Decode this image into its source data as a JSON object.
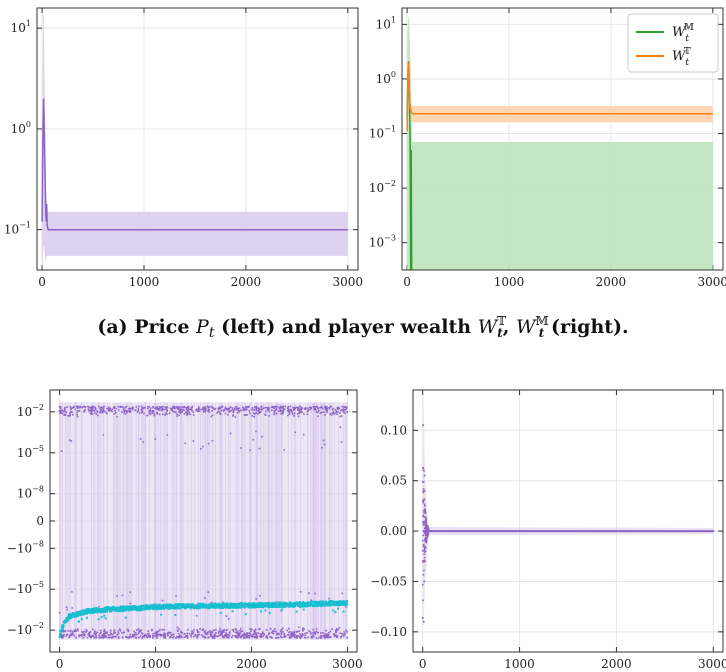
{
  "caption": "(a) Price P_t (left) and player wealth W_t^T, W_t^M (right).",
  "colors": {
    "purple": "#8e63c5",
    "purple_fill": "#dccdee",
    "green": "#2ca02c",
    "green_fill": "#bfe3bd",
    "orange": "#ff7f0e",
    "orange_fill": "#fdd3ad",
    "cyan": "#17becf",
    "grid": "#e6e6e6"
  },
  "chart_data": [
    {
      "id": "price",
      "type": "line",
      "title": "",
      "xlabel": "",
      "ylabel": "",
      "xlim": [
        -50,
        3100
      ],
      "y_scale": "log",
      "ylim_log10": [
        -1.4,
        1.2
      ],
      "grid": true,
      "x_ticks": [
        "0",
        "1000",
        "2000",
        "3000"
      ],
      "y_ticks": [
        {
          "base": "10",
          "exp": "1",
          "log10": 1
        },
        {
          "base": "10",
          "exp": "0",
          "log10": 0
        },
        {
          "base": "10",
          "exp": "−1",
          "log10": -1
        }
      ],
      "series": [
        {
          "color_key": "purple",
          "x": [
            0,
            5,
            10,
            15,
            20,
            25,
            30,
            35,
            40,
            45,
            50,
            60,
            80,
            100,
            200,
            500,
            1000,
            2000,
            3000
          ],
          "y": [
            0.12,
            0.5,
            1.2,
            2.0,
            1.2,
            0.6,
            0.3,
            0.15,
            0.12,
            0.18,
            0.11,
            0.1,
            0.1,
            0.1,
            0.1,
            0.1,
            0.1,
            0.1,
            0.1
          ],
          "band": {
            "x": [
              0,
              5,
              10,
              15,
              20,
              25,
              30,
              35,
              40,
              45,
              50,
              60,
              3000
            ],
            "lower": [
              0.04,
              0.05,
              0.06,
              0.07,
              0.07,
              0.06,
              0.05,
              0.05,
              0.05,
              0.055,
              0.055,
              0.055,
              0.055
            ],
            "upper": [
              0.15,
              3.0,
              13.0,
              14.0,
              8.0,
              3.0,
              1.0,
              0.3,
              0.2,
              0.2,
              0.15,
              0.15,
              0.15
            ]
          }
        }
      ]
    },
    {
      "id": "wealth",
      "type": "line",
      "title": "",
      "xlabel": "",
      "ylabel": "",
      "xlim": [
        -50,
        3100
      ],
      "y_scale": "log",
      "ylim_log10": [
        -3.5,
        1.3
      ],
      "grid": true,
      "legend_position": "top-right",
      "x_ticks": [
        "0",
        "1000",
        "2000",
        "3000"
      ],
      "y_ticks": [
        {
          "base": "10",
          "exp": "1",
          "log10": 1
        },
        {
          "base": "10",
          "exp": "0",
          "log10": 0
        },
        {
          "base": "10",
          "exp": "−1",
          "log10": -1
        },
        {
          "base": "10",
          "exp": "−2",
          "log10": -2
        },
        {
          "base": "10",
          "exp": "−3",
          "log10": -3
        }
      ],
      "series": [
        {
          "name": "W_t^M",
          "name_main": "W",
          "name_sub": "t",
          "name_sup": "𝕄",
          "color_key": "green",
          "x": [
            0,
            5,
            10,
            15,
            20,
            25,
            30,
            35,
            40,
            45
          ],
          "y": [
            0.2,
            0.6,
            1.5,
            2.1,
            1.0,
            0.3,
            0.05,
            0.0003,
            0.05,
            0.0003
          ],
          "band": {
            "x": [
              0,
              10,
              20,
              30,
              40,
              50,
              60,
              3000
            ],
            "lower": [
              0.0003,
              0.0003,
              0.0003,
              0.0003,
              0.0003,
              0.0003,
              0.0003,
              0.0003
            ],
            "upper": [
              3.0,
              14.0,
              12.0,
              3.0,
              0.5,
              0.07,
              0.07,
              0.07
            ]
          }
        },
        {
          "name": "W_t^T",
          "name_main": "W",
          "name_sub": "t",
          "name_sup": "𝕋",
          "color_key": "orange",
          "x": [
            0,
            5,
            10,
            15,
            20,
            25,
            30,
            40,
            50,
            100,
            500,
            1000,
            2000,
            3000
          ],
          "y": [
            0.11,
            0.4,
            1.3,
            2.0,
            1.0,
            0.4,
            0.3,
            0.25,
            0.23,
            0.23,
            0.23,
            0.23,
            0.23,
            0.23
          ],
          "band": {
            "x": [
              0,
              10,
              20,
              30,
              40,
              50,
              3000
            ],
            "lower": [
              0.1,
              0.3,
              0.3,
              0.2,
              0.16,
              0.16,
              0.16
            ],
            "upper": [
              2.5,
              2.5,
              1.5,
              0.6,
              0.32,
              0.32,
              0.32
            ]
          }
        }
      ]
    },
    {
      "id": "bottom-left",
      "type": "scatter",
      "title": "",
      "xlabel": "",
      "ylabel": "",
      "xlim": [
        -100,
        3100
      ],
      "y_scale": "symlog",
      "grid": true,
      "x_ticks": [
        "0",
        "1000",
        "2000",
        "3000"
      ],
      "y_ticks": [
        {
          "base": "10",
          "exp": "−2",
          "sign": "",
          "value": 0.01
        },
        {
          "base": "10",
          "exp": "−5",
          "sign": "",
          "value": 1e-05
        },
        {
          "base": "10",
          "exp": "−8",
          "sign": "",
          "value": 1e-08
        },
        {
          "base": "0",
          "exp": "",
          "sign": "",
          "value": 0
        },
        {
          "base": "10",
          "exp": "−8",
          "sign": "−",
          "value": -1e-08
        },
        {
          "base": "10",
          "exp": "−5",
          "sign": "−",
          "value": -1e-05
        },
        {
          "base": "10",
          "exp": "−2",
          "sign": "−",
          "value": -0.01
        }
      ],
      "series": [
        {
          "color_key": "purple",
          "description_values": {
            "x_range": [
              0,
              3000
            ],
            "upper_cluster_y_around": 0.02,
            "lower_cluster_y_around": -0.03
          }
        },
        {
          "color_key": "cyan",
          "x": [
            0,
            20,
            50,
            100,
            200,
            300,
            500,
            800,
            1000,
            1500,
            2000,
            2500,
            3000
          ],
          "y": [
            -0.03,
            -0.008,
            -0.003,
            -0.001,
            -0.0006,
            -0.0004,
            -0.0003,
            -0.00025,
            -0.0002,
            -0.00017,
            -0.00015,
            -0.00013,
            -0.0001
          ]
        }
      ]
    },
    {
      "id": "bottom-right",
      "type": "scatter",
      "title": "",
      "xlabel": "",
      "ylabel": "",
      "xlim": [
        -100,
        3100
      ],
      "ylim": [
        -0.12,
        0.14
      ],
      "grid": true,
      "x_ticks": [
        "0",
        "1000",
        "2000",
        "3000"
      ],
      "y_ticks": [
        "0.10",
        "0.05",
        "0.00",
        "−0.05",
        "−0.10"
      ],
      "y_tick_values": [
        0.1,
        0.05,
        0.0,
        -0.05,
        -0.1
      ],
      "series": [
        {
          "color_key": "purple",
          "x": [
            5,
            10,
            12,
            15,
            18,
            20,
            22,
            25,
            28,
            30,
            35,
            40,
            45,
            50,
            60,
            80,
            100,
            200,
            500,
            1000,
            2000,
            3000
          ],
          "y": [
            0.105,
            -0.09,
            0.06,
            -0.05,
            0.04,
            0.055,
            -0.03,
            0.02,
            -0.02,
            0.01,
            -0.01,
            0.005,
            -0.004,
            0.002,
            0.001,
            0.0,
            0.0,
            0.0,
            0.0,
            0.0,
            0.0,
            0.0
          ]
        }
      ]
    }
  ]
}
